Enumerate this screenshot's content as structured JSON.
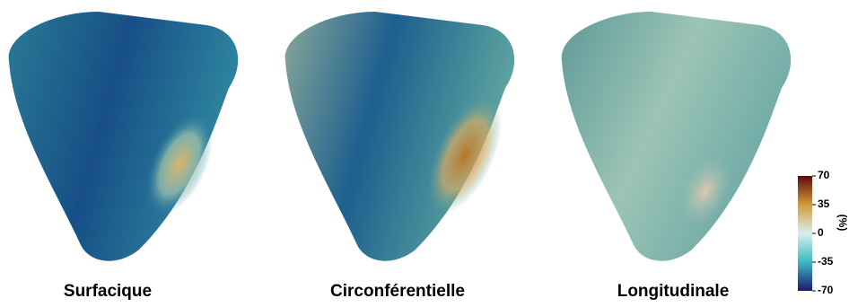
{
  "panels": [
    {
      "label": "Surfacique"
    },
    {
      "label": "Circonférentielle"
    },
    {
      "label": "Longitudinale"
    }
  ],
  "colorbar": {
    "ticks": [
      70,
      35,
      0,
      -35,
      -70
    ],
    "label": "(%)"
  }
}
